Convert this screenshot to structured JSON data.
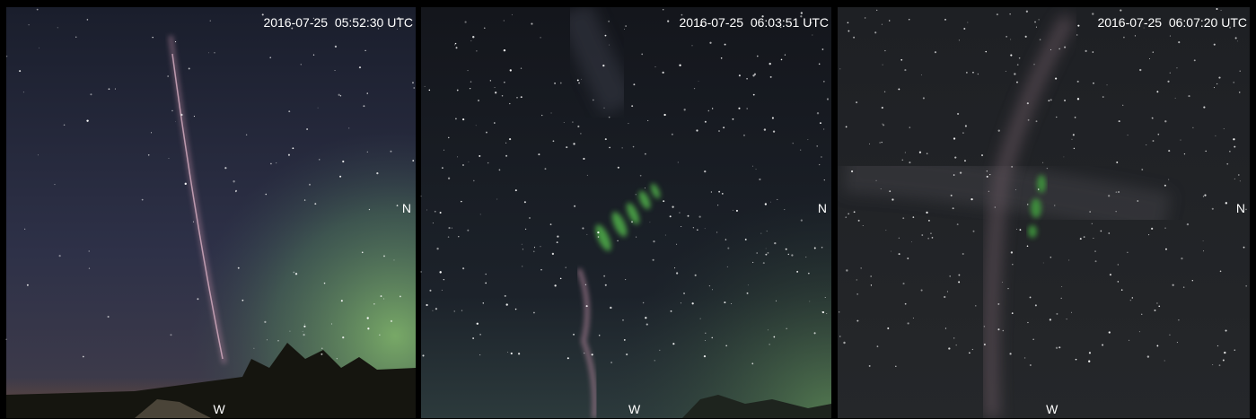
{
  "panels": [
    {
      "timestamp": "2016-07-25  05:52:30 UTC",
      "north": "N",
      "west": "W"
    },
    {
      "timestamp": "2016-07-25  06:03:51 UTC",
      "north": "N",
      "west": "W"
    },
    {
      "timestamp": "2016-07-25  06:07:20 UTC",
      "north": "N",
      "west": "W"
    }
  ]
}
